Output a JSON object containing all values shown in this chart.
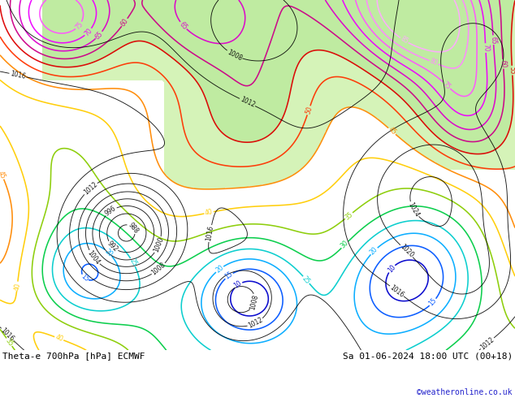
{
  "title_left": "Theta-e 700hPa [hPa] ECMWF",
  "title_right": "Sa 01-06-2024 18:00 UTC (00+18)",
  "credit": "©weatheronline.co.uk",
  "bg_color": "#ffffff",
  "map_bg": "#ffffff",
  "figsize": [
    6.34,
    4.9
  ],
  "dpi": 100,
  "theta_levels": [
    10,
    15,
    20,
    25,
    30,
    35,
    40,
    45,
    50,
    55,
    60,
    65,
    70,
    75,
    80,
    85
  ],
  "theta_colors": {
    "10": "#0000cc",
    "15": "#0055ff",
    "20": "#00aaff",
    "25": "#00cccc",
    "30": "#00cc44",
    "35": "#88cc00",
    "40": "#ffcc00",
    "45": "#ff8800",
    "50": "#ff3300",
    "55": "#dd0000",
    "60": "#cc0088",
    "65": "#dd00cc",
    "70": "#ee00ff",
    "75": "#ff55ff",
    "80": "#ff88ff",
    "85": "#ffaaff"
  },
  "pressure_step": 4,
  "pressure_min": 976,
  "pressure_max": 1036
}
